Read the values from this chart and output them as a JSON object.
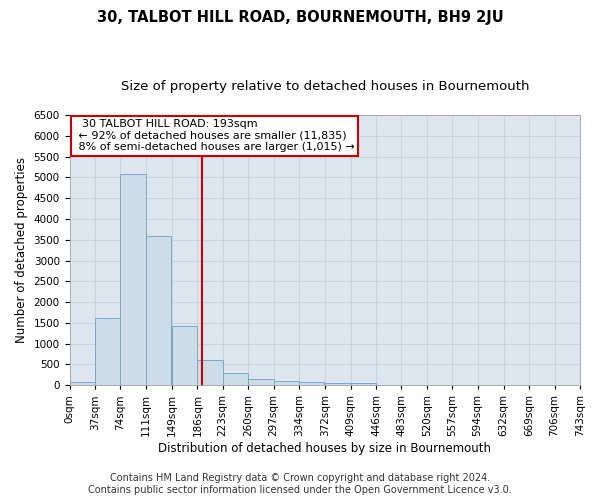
{
  "title": "30, TALBOT HILL ROAD, BOURNEMOUTH, BH9 2JU",
  "subtitle": "Size of property relative to detached houses in Bournemouth",
  "xlabel": "Distribution of detached houses by size in Bournemouth",
  "ylabel": "Number of detached properties",
  "footer_line1": "Contains HM Land Registry data © Crown copyright and database right 2024.",
  "footer_line2": "Contains public sector information licensed under the Open Government Licence v3.0.",
  "bin_labels": [
    "0sqm",
    "37sqm",
    "74sqm",
    "111sqm",
    "149sqm",
    "186sqm",
    "223sqm",
    "260sqm",
    "297sqm",
    "334sqm",
    "372sqm",
    "409sqm",
    "446sqm",
    "483sqm",
    "520sqm",
    "557sqm",
    "594sqm",
    "632sqm",
    "669sqm",
    "706sqm",
    "743sqm"
  ],
  "bar_values": [
    75,
    1625,
    5075,
    3600,
    1420,
    600,
    290,
    145,
    110,
    80,
    60,
    60,
    0,
    0,
    0,
    0,
    0,
    0,
    0,
    0
  ],
  "bar_color": "#ccdce8",
  "bar_edge_color": "#7aaac8",
  "grid_color": "#c8d4e0",
  "annotation_text": "  30 TALBOT HILL ROAD: 193sqm  \n ← 92% of detached houses are smaller (11,835)\n 8% of semi-detached houses are larger (1,015) →",
  "annotation_box_color": "#ffffff",
  "annotation_box_edge_color": "#cc0000",
  "property_line_x": 193,
  "property_line_color": "#cc0000",
  "bin_width": 37,
  "ylim": [
    0,
    6500
  ],
  "yticks": [
    0,
    500,
    1000,
    1500,
    2000,
    2500,
    3000,
    3500,
    4000,
    4500,
    5000,
    5500,
    6000,
    6500
  ],
  "figure_facecolor": "#ffffff",
  "axes_facecolor": "#dde6ef",
  "title_fontsize": 10.5,
  "subtitle_fontsize": 9.5,
  "axis_label_fontsize": 8.5,
  "tick_fontsize": 7.5,
  "footer_fontsize": 7,
  "annotation_fontsize": 8
}
